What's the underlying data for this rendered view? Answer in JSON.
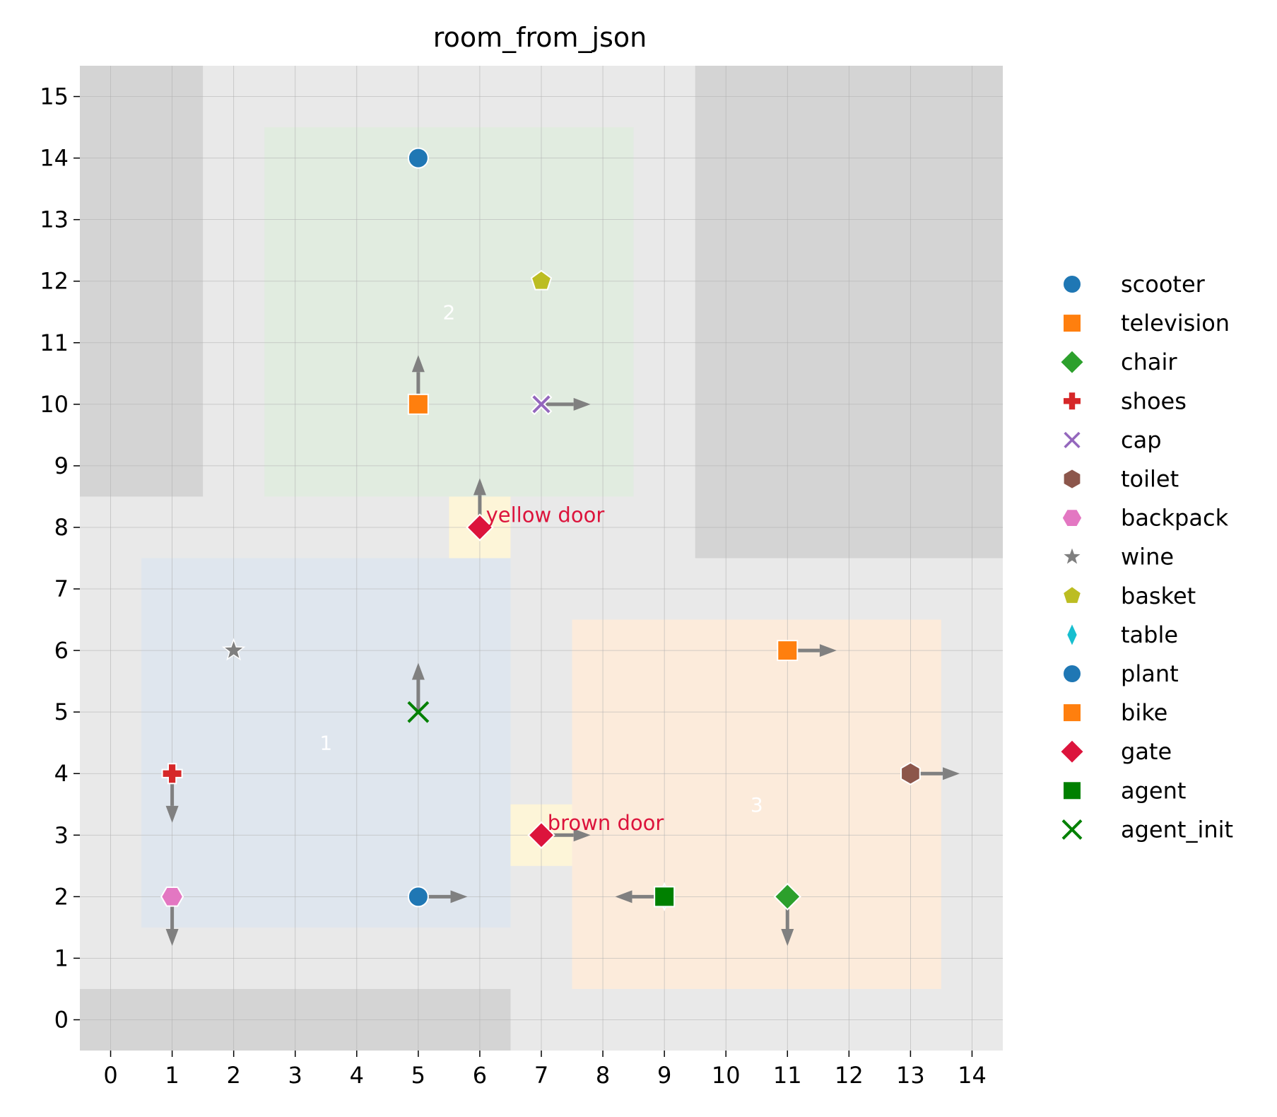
{
  "chart_data": {
    "type": "scatter",
    "title": "room_from_json",
    "xlim": [
      -0.5,
      14.5
    ],
    "ylim": [
      -0.5,
      15.5
    ],
    "xticks": [
      0,
      1,
      2,
      3,
      4,
      5,
      6,
      7,
      8,
      9,
      10,
      11,
      12,
      13,
      14
    ],
    "yticks": [
      0,
      1,
      2,
      3,
      4,
      5,
      6,
      7,
      8,
      9,
      10,
      11,
      12,
      13,
      14,
      15
    ],
    "grid": true,
    "legend_placement": "right",
    "background_color": "#e9e9e9",
    "walls": [
      {
        "x": [
          -0.5,
          1.5
        ],
        "y": [
          8.5,
          15.5
        ]
      },
      {
        "x": [
          9.5,
          14.5
        ],
        "y": [
          7.5,
          15.5
        ]
      },
      {
        "x": [
          -0.5,
          6.5
        ],
        "y": [
          -0.5,
          0.5
        ]
      }
    ],
    "wall_color": "#d4d4d4",
    "rooms": [
      {
        "label": "1",
        "x": [
          0.5,
          6.5
        ],
        "y": [
          1.5,
          7.5
        ],
        "label_pos": [
          3.5,
          4.5
        ],
        "color": "#dfe6ee"
      },
      {
        "label": "2",
        "x": [
          2.5,
          8.5
        ],
        "y": [
          8.5,
          14.5
        ],
        "label_pos": [
          5.5,
          11.5
        ],
        "color": "#e1ece0"
      },
      {
        "label": "3",
        "x": [
          7.5,
          13.5
        ],
        "y": [
          0.5,
          6.5
        ],
        "label_pos": [
          10.5,
          3.5
        ],
        "color": "#fcebdb"
      }
    ],
    "doors": [
      {
        "label": "yellow door",
        "x": [
          5.5,
          6.5
        ],
        "y": [
          7.5,
          8.5
        ],
        "label_pos": [
          6.1,
          8.2
        ]
      },
      {
        "label": "brown door",
        "x": [
          6.5,
          7.5
        ],
        "y": [
          2.5,
          3.5
        ],
        "label_pos": [
          7.1,
          3.2
        ]
      }
    ],
    "door_color": "#fdf5d8",
    "door_label_color": "#dc143c",
    "arrow_color": "#808080",
    "legend": [
      {
        "name": "scooter",
        "marker": "circle",
        "color": "#1f77b4"
      },
      {
        "name": "television",
        "marker": "square",
        "color": "#ff7f0e"
      },
      {
        "name": "chair",
        "marker": "diamond",
        "color": "#2ca02c"
      },
      {
        "name": "shoes",
        "marker": "plus",
        "color": "#d62728"
      },
      {
        "name": "cap",
        "marker": "x",
        "color": "#9467bd"
      },
      {
        "name": "toilet",
        "marker": "hexagon",
        "color": "#8c564b"
      },
      {
        "name": "backpack",
        "marker": "hexagon2",
        "color": "#e377c2"
      },
      {
        "name": "wine",
        "marker": "star",
        "color": "#7f7f7f"
      },
      {
        "name": "basket",
        "marker": "pentagon",
        "color": "#bcbd22"
      },
      {
        "name": "table",
        "marker": "thin_diamond",
        "color": "#17becf"
      },
      {
        "name": "plant",
        "marker": "circle",
        "color": "#1f77b4"
      },
      {
        "name": "bike",
        "marker": "square",
        "color": "#ff7f0e"
      },
      {
        "name": "gate",
        "marker": "diamond",
        "color": "#dc143c"
      },
      {
        "name": "agent",
        "marker": "square",
        "color": "#008000"
      },
      {
        "name": "agent_init",
        "marker": "xline",
        "color": "#008000"
      }
    ],
    "points": [
      {
        "name": "scooter",
        "x": 5,
        "y": 14,
        "dir": null
      },
      {
        "name": "television",
        "x": 5,
        "y": 10,
        "dir": "up"
      },
      {
        "name": "chair",
        "x": 11,
        "y": 2,
        "dir": "down"
      },
      {
        "name": "shoes",
        "x": 1,
        "y": 4,
        "dir": "down"
      },
      {
        "name": "cap",
        "x": 7,
        "y": 10,
        "dir": "right"
      },
      {
        "name": "toilet",
        "x": 13,
        "y": 4,
        "dir": "right"
      },
      {
        "name": "backpack",
        "x": 1,
        "y": 2,
        "dir": "down"
      },
      {
        "name": "wine",
        "x": 2,
        "y": 6,
        "dir": null
      },
      {
        "name": "basket",
        "x": 7,
        "y": 12,
        "dir": null
      },
      {
        "name": "table",
        "x": 9,
        "y": 2,
        "dir": null
      },
      {
        "name": "plant",
        "x": 5,
        "y": 2,
        "dir": "right"
      },
      {
        "name": "bike",
        "x": 11,
        "y": 6,
        "dir": "right"
      },
      {
        "name": "gate",
        "x": 6,
        "y": 8,
        "dir": "up"
      },
      {
        "name": "gate",
        "x": 7,
        "y": 3,
        "dir": "right"
      },
      {
        "name": "agent",
        "x": 9,
        "y": 2,
        "dir": "left"
      },
      {
        "name": "agent_init",
        "x": 5,
        "y": 5,
        "dir": "up"
      }
    ]
  }
}
